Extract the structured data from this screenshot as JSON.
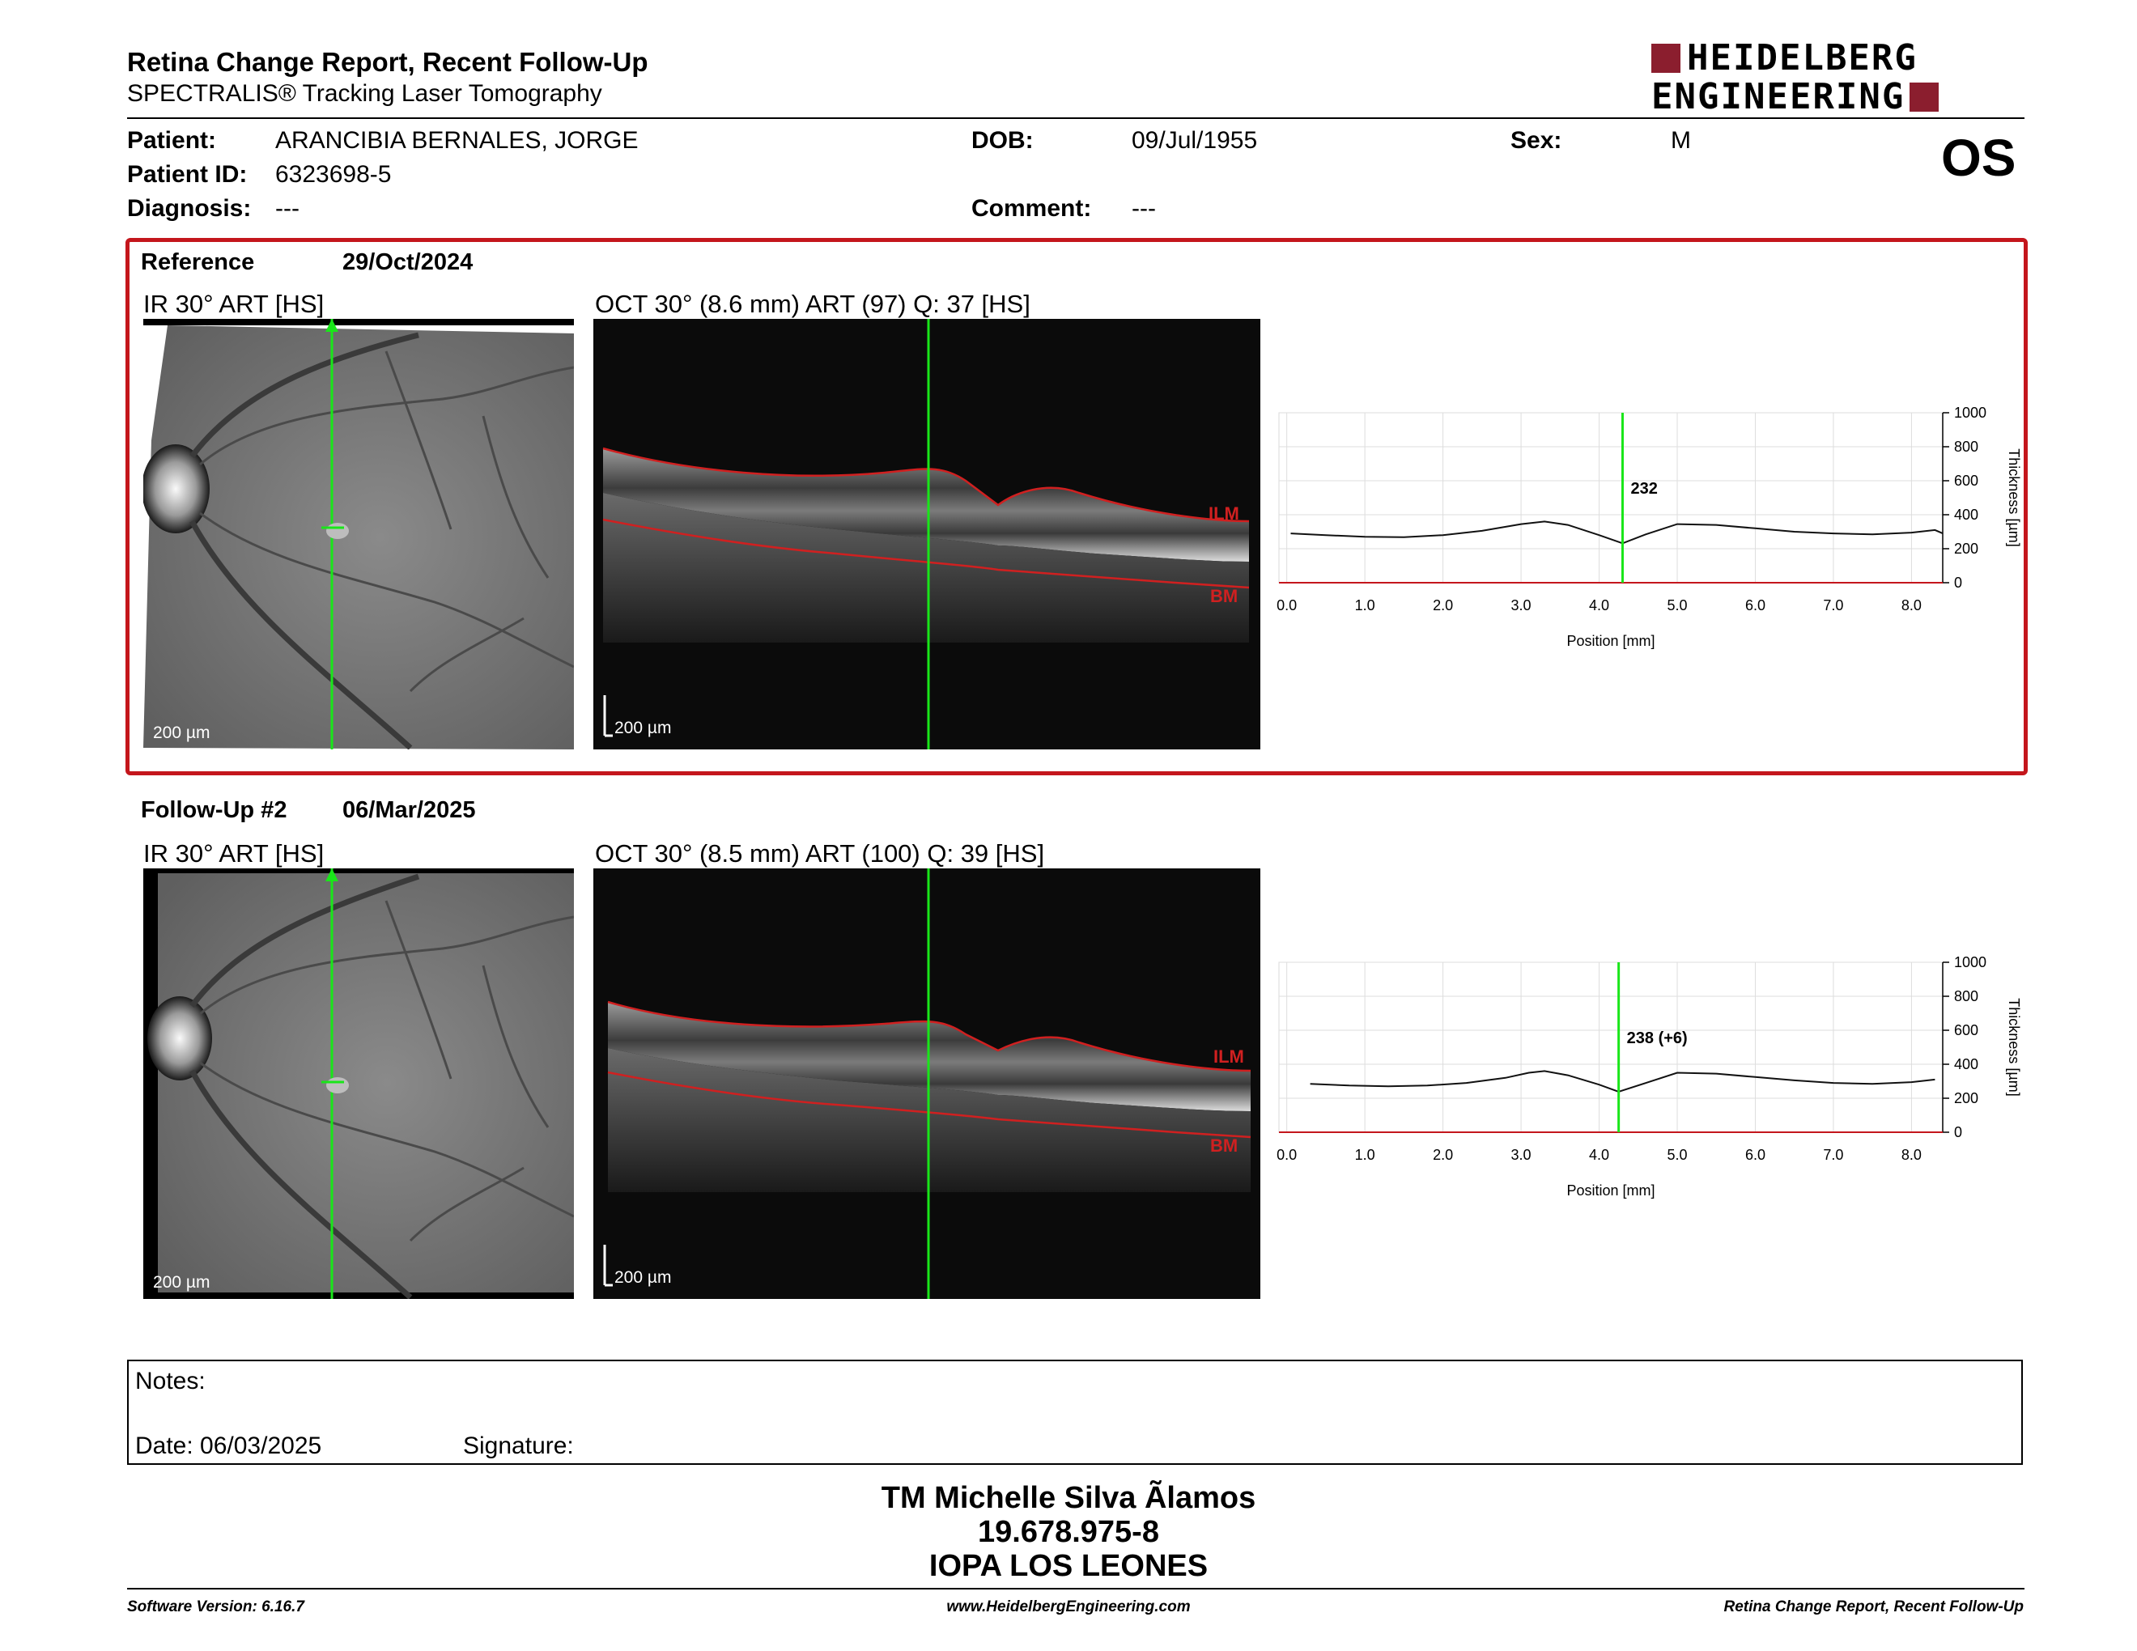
{
  "header": {
    "title": "Retina Change Report, Recent Follow-Up",
    "subtitle": "SPECTRALIS® Tracking Laser Tomography",
    "logo_line1": "HEIDELBERG",
    "logo_line2": "ENGINEERING",
    "eye": "OS"
  },
  "patient": {
    "patient_label": "Patient:",
    "patient_value": "ARANCIBIA BERNALES, JORGE",
    "dob_label": "DOB:",
    "dob_value": "09/Jul/1955",
    "sex_label": "Sex:",
    "sex_value": "M",
    "id_label": "Patient ID:",
    "id_value": "6323698-5",
    "diagnosis_label": "Diagnosis:",
    "diagnosis_value": "---",
    "comment_label": "Comment:",
    "comment_value": "---"
  },
  "reference": {
    "label": "Reference",
    "date": "29/Oct/2024",
    "ir_title": "IR 30° ART [HS]",
    "oct_title": "OCT 30° (8.6 mm) ART (97) Q: 37 [HS]",
    "scale": "200 µm",
    "ilm": "ILM",
    "bm": "BM"
  },
  "followup": {
    "label": "Follow-Up #2",
    "date": "06/Mar/2025",
    "ir_title": "IR 30° ART [HS]",
    "oct_title": "OCT 30° (8.5 mm) ART (100) Q: 39 [HS]",
    "scale": "200 µm",
    "ilm": "ILM",
    "bm": "BM"
  },
  "chart_data": [
    {
      "type": "line",
      "xlabel": "Position [mm]",
      "ylabel": "Thickness [µm]",
      "xlim": [
        -0.1,
        8.4
      ],
      "ylim": [
        0,
        1000
      ],
      "x_ticks": [
        "0.0",
        "1.0",
        "2.0",
        "3.0",
        "4.0",
        "5.0",
        "6.0",
        "7.0",
        "8.0"
      ],
      "y_ticks": [
        "0",
        "200",
        "400",
        "600",
        "800",
        "1000"
      ],
      "cursor_x": 4.3,
      "cursor_label": "232",
      "x": [
        0.05,
        0.5,
        1.0,
        1.5,
        2.0,
        2.5,
        3.0,
        3.3,
        3.6,
        4.0,
        4.3,
        4.6,
        5.0,
        5.5,
        6.0,
        6.5,
        7.0,
        7.5,
        8.0,
        8.3,
        8.4
      ],
      "y": [
        290,
        280,
        270,
        268,
        280,
        305,
        345,
        360,
        340,
        280,
        232,
        285,
        345,
        340,
        320,
        300,
        290,
        285,
        295,
        310,
        290
      ],
      "grid": true
    },
    {
      "type": "line",
      "xlabel": "Position [mm]",
      "ylabel": "Thickness [µm]",
      "xlim": [
        -0.1,
        8.4
      ],
      "ylim": [
        0,
        1000
      ],
      "x_ticks": [
        "0.0",
        "1.0",
        "2.0",
        "3.0",
        "4.0",
        "5.0",
        "6.0",
        "7.0",
        "8.0"
      ],
      "y_ticks": [
        "0",
        "200",
        "400",
        "600",
        "800",
        "1000"
      ],
      "cursor_x": 4.25,
      "cursor_label": "238 (+6)",
      "x": [
        0.3,
        0.8,
        1.3,
        1.8,
        2.3,
        2.8,
        3.1,
        3.3,
        3.6,
        4.0,
        4.25,
        4.6,
        5.0,
        5.5,
        6.0,
        6.5,
        7.0,
        7.5,
        8.0,
        8.3
      ],
      "y": [
        285,
        275,
        270,
        275,
        290,
        320,
        350,
        360,
        335,
        280,
        238,
        290,
        350,
        345,
        325,
        305,
        290,
        285,
        295,
        310
      ],
      "grid": true
    }
  ],
  "notes": {
    "notes_label": "Notes:",
    "date_label": "Date: 06/03/2025",
    "signature_label": "Signature:"
  },
  "signature_block": {
    "name": "TM Michelle Silva Ãlamos",
    "rut": "19.678.975-8",
    "place": "IOPA LOS LEONES"
  },
  "footer": {
    "left": "Software Version: 6.16.7",
    "center": "www.HeidelbergEngineering.com",
    "right": "Retina Change Report, Recent Follow-Up"
  },
  "colors": {
    "accent": "#c4161c",
    "cursor": "#19e619",
    "logo": "#8b1e2e",
    "layer": "#d02020"
  }
}
